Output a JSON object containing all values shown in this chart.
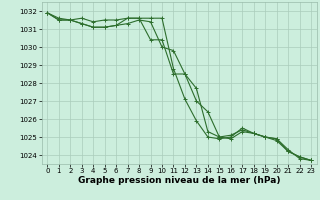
{
  "xlabel": "Graphe pression niveau de la mer (hPa)",
  "ylabel": "",
  "background_color": "#cceedd",
  "grid_color": "#aaccbb",
  "line_color": "#2d6e2d",
  "xlim": [
    -0.5,
    23.5
  ],
  "ylim": [
    1023.5,
    1032.5
  ],
  "yticks": [
    1024,
    1025,
    1026,
    1027,
    1028,
    1029,
    1030,
    1031,
    1032
  ],
  "xticks": [
    0,
    1,
    2,
    3,
    4,
    5,
    6,
    7,
    8,
    9,
    10,
    11,
    12,
    13,
    14,
    15,
    16,
    17,
    18,
    19,
    20,
    21,
    22,
    23
  ],
  "series1": [
    1031.9,
    1031.6,
    1031.5,
    1031.6,
    1031.4,
    1031.5,
    1031.5,
    1031.6,
    1031.6,
    1030.4,
    1030.4,
    1028.5,
    1028.5,
    1027.0,
    1026.4,
    1025.0,
    1024.9,
    1025.3,
    1025.2,
    1025.0,
    1024.9,
    1024.3,
    1023.8,
    1023.7
  ],
  "series2": [
    1031.9,
    1031.5,
    1031.5,
    1031.3,
    1031.1,
    1031.1,
    1031.2,
    1031.3,
    1031.5,
    1031.4,
    1030.0,
    1029.8,
    1028.5,
    1027.7,
    1025.3,
    1025.0,
    1025.1,
    1025.4,
    1025.2,
    1025.0,
    1024.8,
    1024.2,
    1023.9,
    1023.7
  ],
  "series3": [
    1031.9,
    1031.5,
    1031.5,
    1031.3,
    1031.1,
    1031.1,
    1031.2,
    1031.6,
    1031.6,
    1031.6,
    1031.6,
    1028.8,
    1027.1,
    1025.9,
    1025.0,
    1024.9,
    1025.0,
    1025.5,
    1025.2,
    1025.0,
    1024.9,
    1024.2,
    1023.9,
    1023.7
  ],
  "marker": "+",
  "markersize": 3,
  "linewidth": 0.8,
  "tick_fontsize": 5,
  "xlabel_fontsize": 6.5
}
